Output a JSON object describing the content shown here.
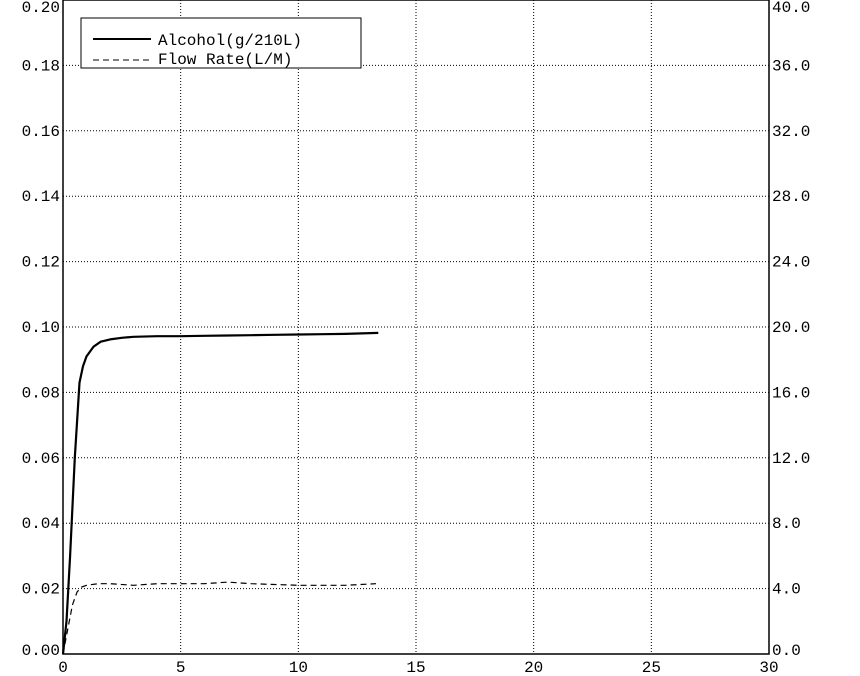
{
  "chart_data": {
    "type": "line",
    "title": "",
    "xlabel": "",
    "ylabel": "",
    "xlim": [
      0,
      30
    ],
    "ylim_left": [
      0,
      0.2
    ],
    "ylim_right": [
      0,
      40
    ],
    "x_ticks": [
      "0",
      "5",
      "10",
      "15",
      "20",
      "25",
      "30"
    ],
    "y_left_ticks": [
      "0.00",
      "0.02",
      "0.04",
      "0.06",
      "0.08",
      "0.10",
      "0.12",
      "0.14",
      "0.16",
      "0.18",
      "0.20"
    ],
    "y_right_ticks": [
      "0.0",
      "4.0",
      "8.0",
      "12.0",
      "16.0",
      "20.0",
      "24.0",
      "28.0",
      "32.0",
      "36.0",
      "40.0"
    ],
    "grid": true,
    "legend_position": "top-left",
    "series": [
      {
        "name": "Alcohol(g/210L)",
        "axis": "left",
        "line_style": "solid",
        "color": "#000000",
        "x": [
          0,
          0.15,
          0.3,
          0.5,
          0.7,
          0.85,
          1.0,
          1.3,
          1.6,
          2.0,
          2.5,
          3.0,
          4.0,
          5.0,
          6.0,
          7.0,
          8.0,
          9.0,
          10.0,
          11.0,
          12.0,
          13.4
        ],
        "y": [
          0.0,
          0.01,
          0.03,
          0.06,
          0.083,
          0.088,
          0.091,
          0.094,
          0.0955,
          0.0962,
          0.0967,
          0.097,
          0.0972,
          0.0972,
          0.0973,
          0.0974,
          0.0975,
          0.0976,
          0.0977,
          0.0978,
          0.0979,
          0.0982
        ]
      },
      {
        "name": "Flow Rate(L/M)",
        "axis": "right",
        "line_style": "dashed",
        "color": "#000000",
        "x": [
          0,
          0.2,
          0.4,
          0.6,
          0.8,
          1.0,
          1.5,
          2.0,
          3.0,
          4.0,
          5.0,
          6.0,
          7.0,
          8.0,
          9.0,
          10.0,
          11.0,
          12.0,
          13.3
        ],
        "y": [
          0.0,
          1.5,
          3.0,
          3.8,
          4.1,
          4.2,
          4.3,
          4.3,
          4.2,
          4.3,
          4.3,
          4.3,
          4.4,
          4.3,
          4.25,
          4.2,
          4.2,
          4.2,
          4.3
        ]
      }
    ]
  }
}
